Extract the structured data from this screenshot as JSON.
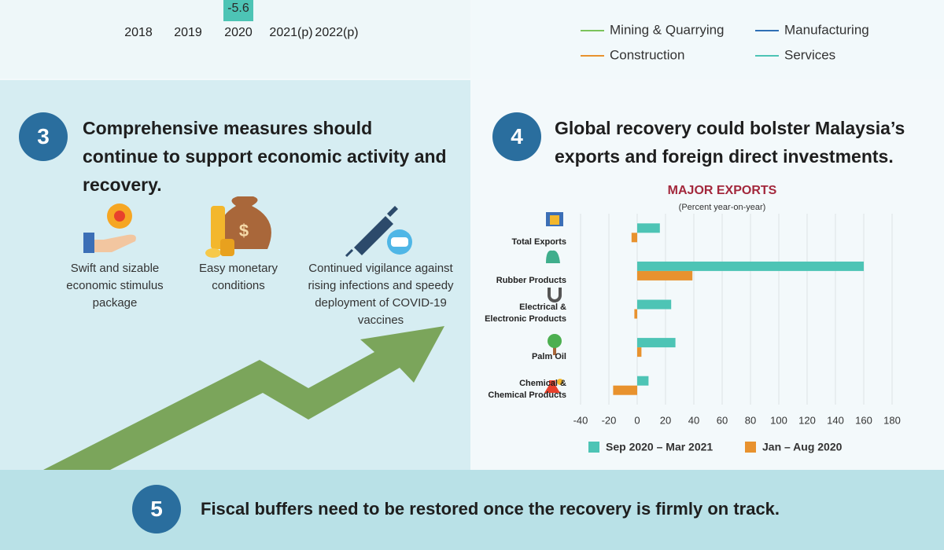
{
  "chart_data": [
    {
      "type": "bar",
      "categories": [
        "2018",
        "2019",
        "2020",
        "2021(p)",
        "2022(p)"
      ],
      "values": [
        null,
        null,
        -5.6,
        null,
        null
      ],
      "color": "#4dc4b5"
    },
    {
      "type": "line",
      "series": [
        {
          "name": "Mining & Quarrying",
          "color": "#7cc35b"
        },
        {
          "name": "Manufacturing",
          "color": "#2f6fb5"
        },
        {
          "name": "Construction",
          "color": "#e8922e"
        },
        {
          "name": "Services",
          "color": "#4dc4b5"
        }
      ]
    },
    {
      "type": "bar",
      "orientation": "horizontal",
      "title": "MAJOR EXPORTS",
      "subtitle": "(Percent year-on-year)",
      "categories": [
        "Total Exports",
        "Rubber Products",
        "Electrical &\nElectronic Products",
        "Palm Oil",
        "Chemical &\nChemical Products"
      ],
      "series": [
        {
          "name": "Sep 2020 – Mar 2021",
          "color": "#4dc4b5",
          "values": [
            16,
            160,
            24,
            27,
            8
          ]
        },
        {
          "name": "Jan – Aug 2020",
          "color": "#e8922e",
          "values": [
            -4,
            39,
            -2,
            3,
            -17
          ]
        }
      ],
      "xlim": [
        -40,
        180
      ],
      "xticks": [
        -40,
        -20,
        0,
        20,
        40,
        60,
        80,
        100,
        120,
        140,
        160,
        180
      ],
      "grid": true
    }
  ],
  "sections": [
    {
      "number": "3",
      "heading": "Comprehensive measures should continue to support economic activity and recovery.",
      "items": [
        {
          "caption": "Swift and sizable economic stimulus package"
        },
        {
          "caption": "Easy monetary conditions"
        },
        {
          "caption": "Continued vigilance against rising infections and speedy deployment of COVID-19 vaccines"
        }
      ]
    },
    {
      "number": "4",
      "heading": "Global recovery could bolster Malaysia’s exports and foreign direct investments."
    },
    {
      "number": "5",
      "heading": "Fiscal buffers need to be restored once the recovery is firmly on track."
    }
  ]
}
